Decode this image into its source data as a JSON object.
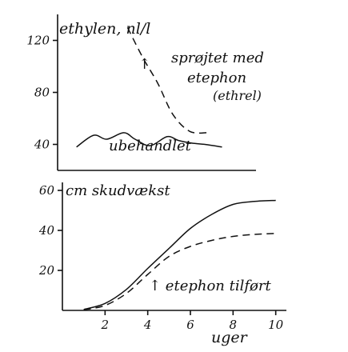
{
  "chart_data": [
    {
      "type": "line",
      "ylabel": "ethylen, nl/l",
      "yticks": [
        40,
        80,
        120
      ],
      "ylim": [
        20,
        140
      ],
      "x_ticks_shown": false,
      "xlim": [
        0,
        10.5
      ],
      "series": [
        {
          "name": "sprøjtet med etephon (ethrel)",
          "style": "dashed",
          "x": [
            3.7,
            4.5,
            5.3,
            6.1,
            7.0,
            7.9
          ],
          "y": [
            130,
            107,
            87,
            63,
            50,
            49
          ]
        },
        {
          "name": "ubehandlet",
          "style": "solid",
          "x": [
            1.0,
            1.9,
            2.6,
            3.5,
            4.1,
            4.9,
            5.8,
            6.4,
            7.1,
            7.8,
            8.7
          ],
          "y": [
            38,
            47,
            44,
            49,
            44,
            39,
            46,
            43,
            41,
            40,
            38
          ]
        }
      ],
      "annotations": [
        {
          "text": "↑",
          "x": 3.8,
          "y": 110
        }
      ]
    },
    {
      "type": "line",
      "ylabel": "cm skudvækst",
      "xlabel": "uger",
      "xticks": [
        2,
        4,
        6,
        8,
        10
      ],
      "yticks": [
        20,
        40,
        60
      ],
      "xlim": [
        0,
        10.5
      ],
      "ylim": [
        0,
        64
      ],
      "series": [
        {
          "style": "solid",
          "x": [
            1,
            2,
            3,
            4,
            5,
            6,
            7,
            8,
            9,
            10
          ],
          "y": [
            0.5,
            3.5,
            10.5,
            21,
            31,
            41,
            48,
            53,
            54.5,
            55
          ]
        },
        {
          "style": "dashed",
          "x": [
            1,
            2,
            3,
            4,
            5,
            6,
            7,
            8,
            9,
            10
          ],
          "y": [
            0.3,
            2.5,
            8.5,
            18,
            27,
            32,
            35,
            37,
            38,
            38.5
          ]
        }
      ],
      "annotations": [
        {
          "text": "↑ etephon tilført",
          "x": 4.0,
          "y": 15
        }
      ]
    }
  ],
  "labels": {
    "top_ylabel": "ethylen, nl/l",
    "dashed_label_line1": "sprøjtet med",
    "dashed_label_line2": "etephon",
    "dashed_label_line3": "(ethrel)",
    "solid_label": "ubehandlet",
    "bottom_ylabel": "cm skudvækst",
    "annotation": "↑ etephon tilført",
    "xlabel": "uger",
    "arrow": "↑"
  }
}
